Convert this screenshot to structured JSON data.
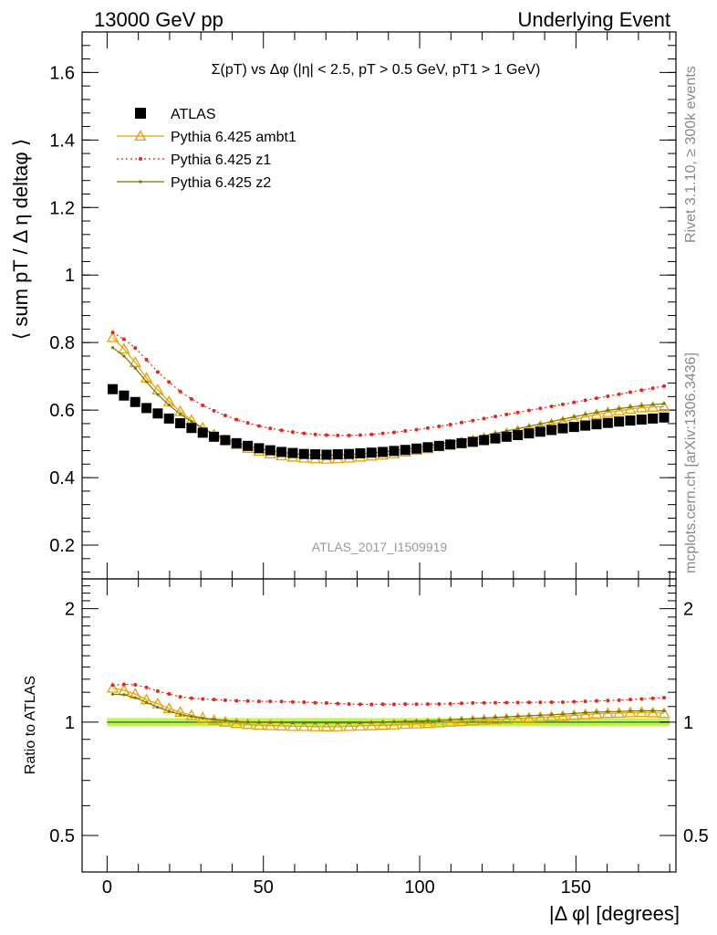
{
  "header": {
    "left": "13000 GeV pp",
    "right": "Underlying Event"
  },
  "side_labels": {
    "rivet": "Rivet 3.1.10, ≥ 300k events",
    "mcplots": "mcplots.cern.ch [arXiv:1306.3436]"
  },
  "analysis_tag": "ATLAS_2017_I1509919",
  "colors": {
    "atlas": "#000000",
    "ambt1": "#e8a000",
    "z1": "#e8261a",
    "z2": "#6e7a10",
    "band": "#c8f050",
    "ref_line": "#2e8b2e"
  },
  "chart_data": [
    {
      "type": "scatter",
      "title": "Σ(pT) vs Δφ (|η| < 2.5, pT > 0.5 GeV, pT1 > 1 GeV)",
      "xlabel": "|Δ φ| [degrees]",
      "ylabel": "⟨ sum pT / Δ η deltaφ ⟩",
      "xlim": [
        -8,
        182
      ],
      "ylim": [
        0.1,
        1.72
      ],
      "y_ticks": [
        0.2,
        0.4,
        0.6,
        0.8,
        1,
        1.2,
        1.4,
        1.6
      ],
      "y_tick_labels": [
        "0.2",
        "0.4",
        "0.6",
        "0.8",
        "1",
        "1.2",
        "1.4",
        "1.6"
      ],
      "legend_position": "top-left",
      "series": [
        {
          "name": "ATLAS",
          "marker": "square",
          "x": [
            1.8,
            5.4,
            9,
            12.6,
            16.2,
            19.8,
            23.4,
            27,
            30.6,
            34.2,
            37.8,
            41.4,
            45,
            48.6,
            52.2,
            55.8,
            59.4,
            63,
            66.6,
            70.2,
            73.8,
            77.4,
            81,
            84.6,
            88.2,
            91.8,
            95.4,
            99,
            102.6,
            106.2,
            109.8,
            113.4,
            117,
            120.6,
            124.2,
            127.8,
            131.4,
            135,
            138.6,
            142.2,
            145.8,
            149.4,
            153,
            156.6,
            160.2,
            163.8,
            167.4,
            171,
            174.6,
            178.2
          ],
          "values": [
            0.662,
            0.643,
            0.624,
            0.606,
            0.59,
            0.575,
            0.561,
            0.547,
            0.533,
            0.521,
            0.511,
            0.502,
            0.494,
            0.487,
            0.481,
            0.476,
            0.473,
            0.47,
            0.469,
            0.468,
            0.469,
            0.47,
            0.472,
            0.474,
            0.476,
            0.479,
            0.482,
            0.486,
            0.49,
            0.494,
            0.498,
            0.502,
            0.506,
            0.511,
            0.516,
            0.521,
            0.526,
            0.531,
            0.536,
            0.541,
            0.546,
            0.55,
            0.554,
            0.558,
            0.562,
            0.566,
            0.569,
            0.572,
            0.575,
            0.578
          ]
        },
        {
          "name": "Pythia 6.425 ambt1",
          "marker": "open-triangle",
          "x": [
            1.8,
            5.4,
            9,
            12.6,
            16.2,
            19.8,
            23.4,
            27,
            30.6,
            34.2,
            37.8,
            41.4,
            45,
            48.6,
            52.2,
            55.8,
            59.4,
            63,
            66.6,
            70.2,
            73.8,
            77.4,
            81,
            84.6,
            88.2,
            91.8,
            95.4,
            99,
            102.6,
            106.2,
            109.8,
            113.4,
            117,
            120.6,
            124.2,
            127.8,
            131.4,
            135,
            138.6,
            142.2,
            145.8,
            149.4,
            153,
            156.6,
            160.2,
            163.8,
            167.4,
            171,
            174.6,
            178.2
          ],
          "values": [
            0.815,
            0.781,
            0.741,
            0.695,
            0.66,
            0.625,
            0.596,
            0.57,
            0.547,
            0.527,
            0.511,
            0.498,
            0.487,
            0.478,
            0.471,
            0.465,
            0.461,
            0.458,
            0.456,
            0.455,
            0.456,
            0.458,
            0.461,
            0.464,
            0.467,
            0.471,
            0.476,
            0.481,
            0.486,
            0.492,
            0.498,
            0.504,
            0.51,
            0.517,
            0.524,
            0.531,
            0.538,
            0.545,
            0.552,
            0.559,
            0.566,
            0.573,
            0.58,
            0.587,
            0.593,
            0.598,
            0.603,
            0.607,
            0.609,
            0.61
          ]
        },
        {
          "name": "Pythia 6.425 z1",
          "marker": "dot",
          "x": [
            1.8,
            5.4,
            9,
            12.6,
            16.2,
            19.8,
            23.4,
            27,
            30.6,
            34.2,
            37.8,
            41.4,
            45,
            48.6,
            52.2,
            55.8,
            59.4,
            63,
            66.6,
            70.2,
            73.8,
            77.4,
            81,
            84.6,
            88.2,
            91.8,
            95.4,
            99,
            102.6,
            106.2,
            109.8,
            113.4,
            117,
            120.6,
            124.2,
            127.8,
            131.4,
            135,
            138.6,
            142.2,
            145.8,
            149.4,
            153,
            156.6,
            160.2,
            163.8,
            167.4,
            171,
            174.6,
            178.2
          ],
          "values": [
            0.83,
            0.81,
            0.784,
            0.749,
            0.713,
            0.683,
            0.655,
            0.633,
            0.614,
            0.598,
            0.584,
            0.572,
            0.562,
            0.553,
            0.546,
            0.54,
            0.535,
            0.531,
            0.528,
            0.526,
            0.525,
            0.525,
            0.526,
            0.528,
            0.531,
            0.534,
            0.538,
            0.542,
            0.547,
            0.552,
            0.557,
            0.563,
            0.569,
            0.575,
            0.581,
            0.587,
            0.593,
            0.599,
            0.605,
            0.611,
            0.617,
            0.623,
            0.629,
            0.635,
            0.641,
            0.647,
            0.653,
            0.659,
            0.665,
            0.671
          ]
        },
        {
          "name": "Pythia 6.425 z2",
          "marker": "dot",
          "x": [
            1.8,
            5.4,
            9,
            12.6,
            16.2,
            19.8,
            23.4,
            27,
            30.6,
            34.2,
            37.8,
            41.4,
            45,
            48.6,
            52.2,
            55.8,
            59.4,
            63,
            66.6,
            70.2,
            73.8,
            77.4,
            81,
            84.6,
            88.2,
            91.8,
            95.4,
            99,
            102.6,
            106.2,
            109.8,
            113.4,
            117,
            120.6,
            124.2,
            127.8,
            131.4,
            135,
            138.6,
            142.2,
            145.8,
            149.4,
            153,
            156.6,
            160.2,
            163.8,
            167.4,
            171,
            174.6,
            178.2
          ],
          "values": [
            0.785,
            0.76,
            0.724,
            0.684,
            0.646,
            0.615,
            0.588,
            0.566,
            0.546,
            0.53,
            0.516,
            0.504,
            0.494,
            0.486,
            0.48,
            0.475,
            0.471,
            0.468,
            0.467,
            0.466,
            0.467,
            0.468,
            0.47,
            0.473,
            0.476,
            0.48,
            0.484,
            0.489,
            0.494,
            0.499,
            0.505,
            0.511,
            0.517,
            0.524,
            0.531,
            0.538,
            0.545,
            0.552,
            0.559,
            0.566,
            0.573,
            0.58,
            0.587,
            0.593,
            0.599,
            0.604,
            0.609,
            0.613,
            0.616,
            0.619
          ]
        }
      ]
    },
    {
      "type": "scatter",
      "title": "",
      "xlabel": "|Δ φ| [degrees]",
      "ylabel": "Ratio to ATLAS",
      "xlim": [
        -8,
        182
      ],
      "ylim": [
        0.4,
        2.4
      ],
      "y_scale": "log",
      "y_ticks": [
        0.5,
        1,
        2
      ],
      "y_tick_labels": [
        "0.5",
        "1",
        "2"
      ],
      "x_ticks": [
        0,
        50,
        100,
        150
      ],
      "x_tick_labels": [
        "0",
        "50",
        "100",
        "150"
      ],
      "reference": 1,
      "uncertainty_band": [
        0.975,
        1.025
      ]
    }
  ]
}
